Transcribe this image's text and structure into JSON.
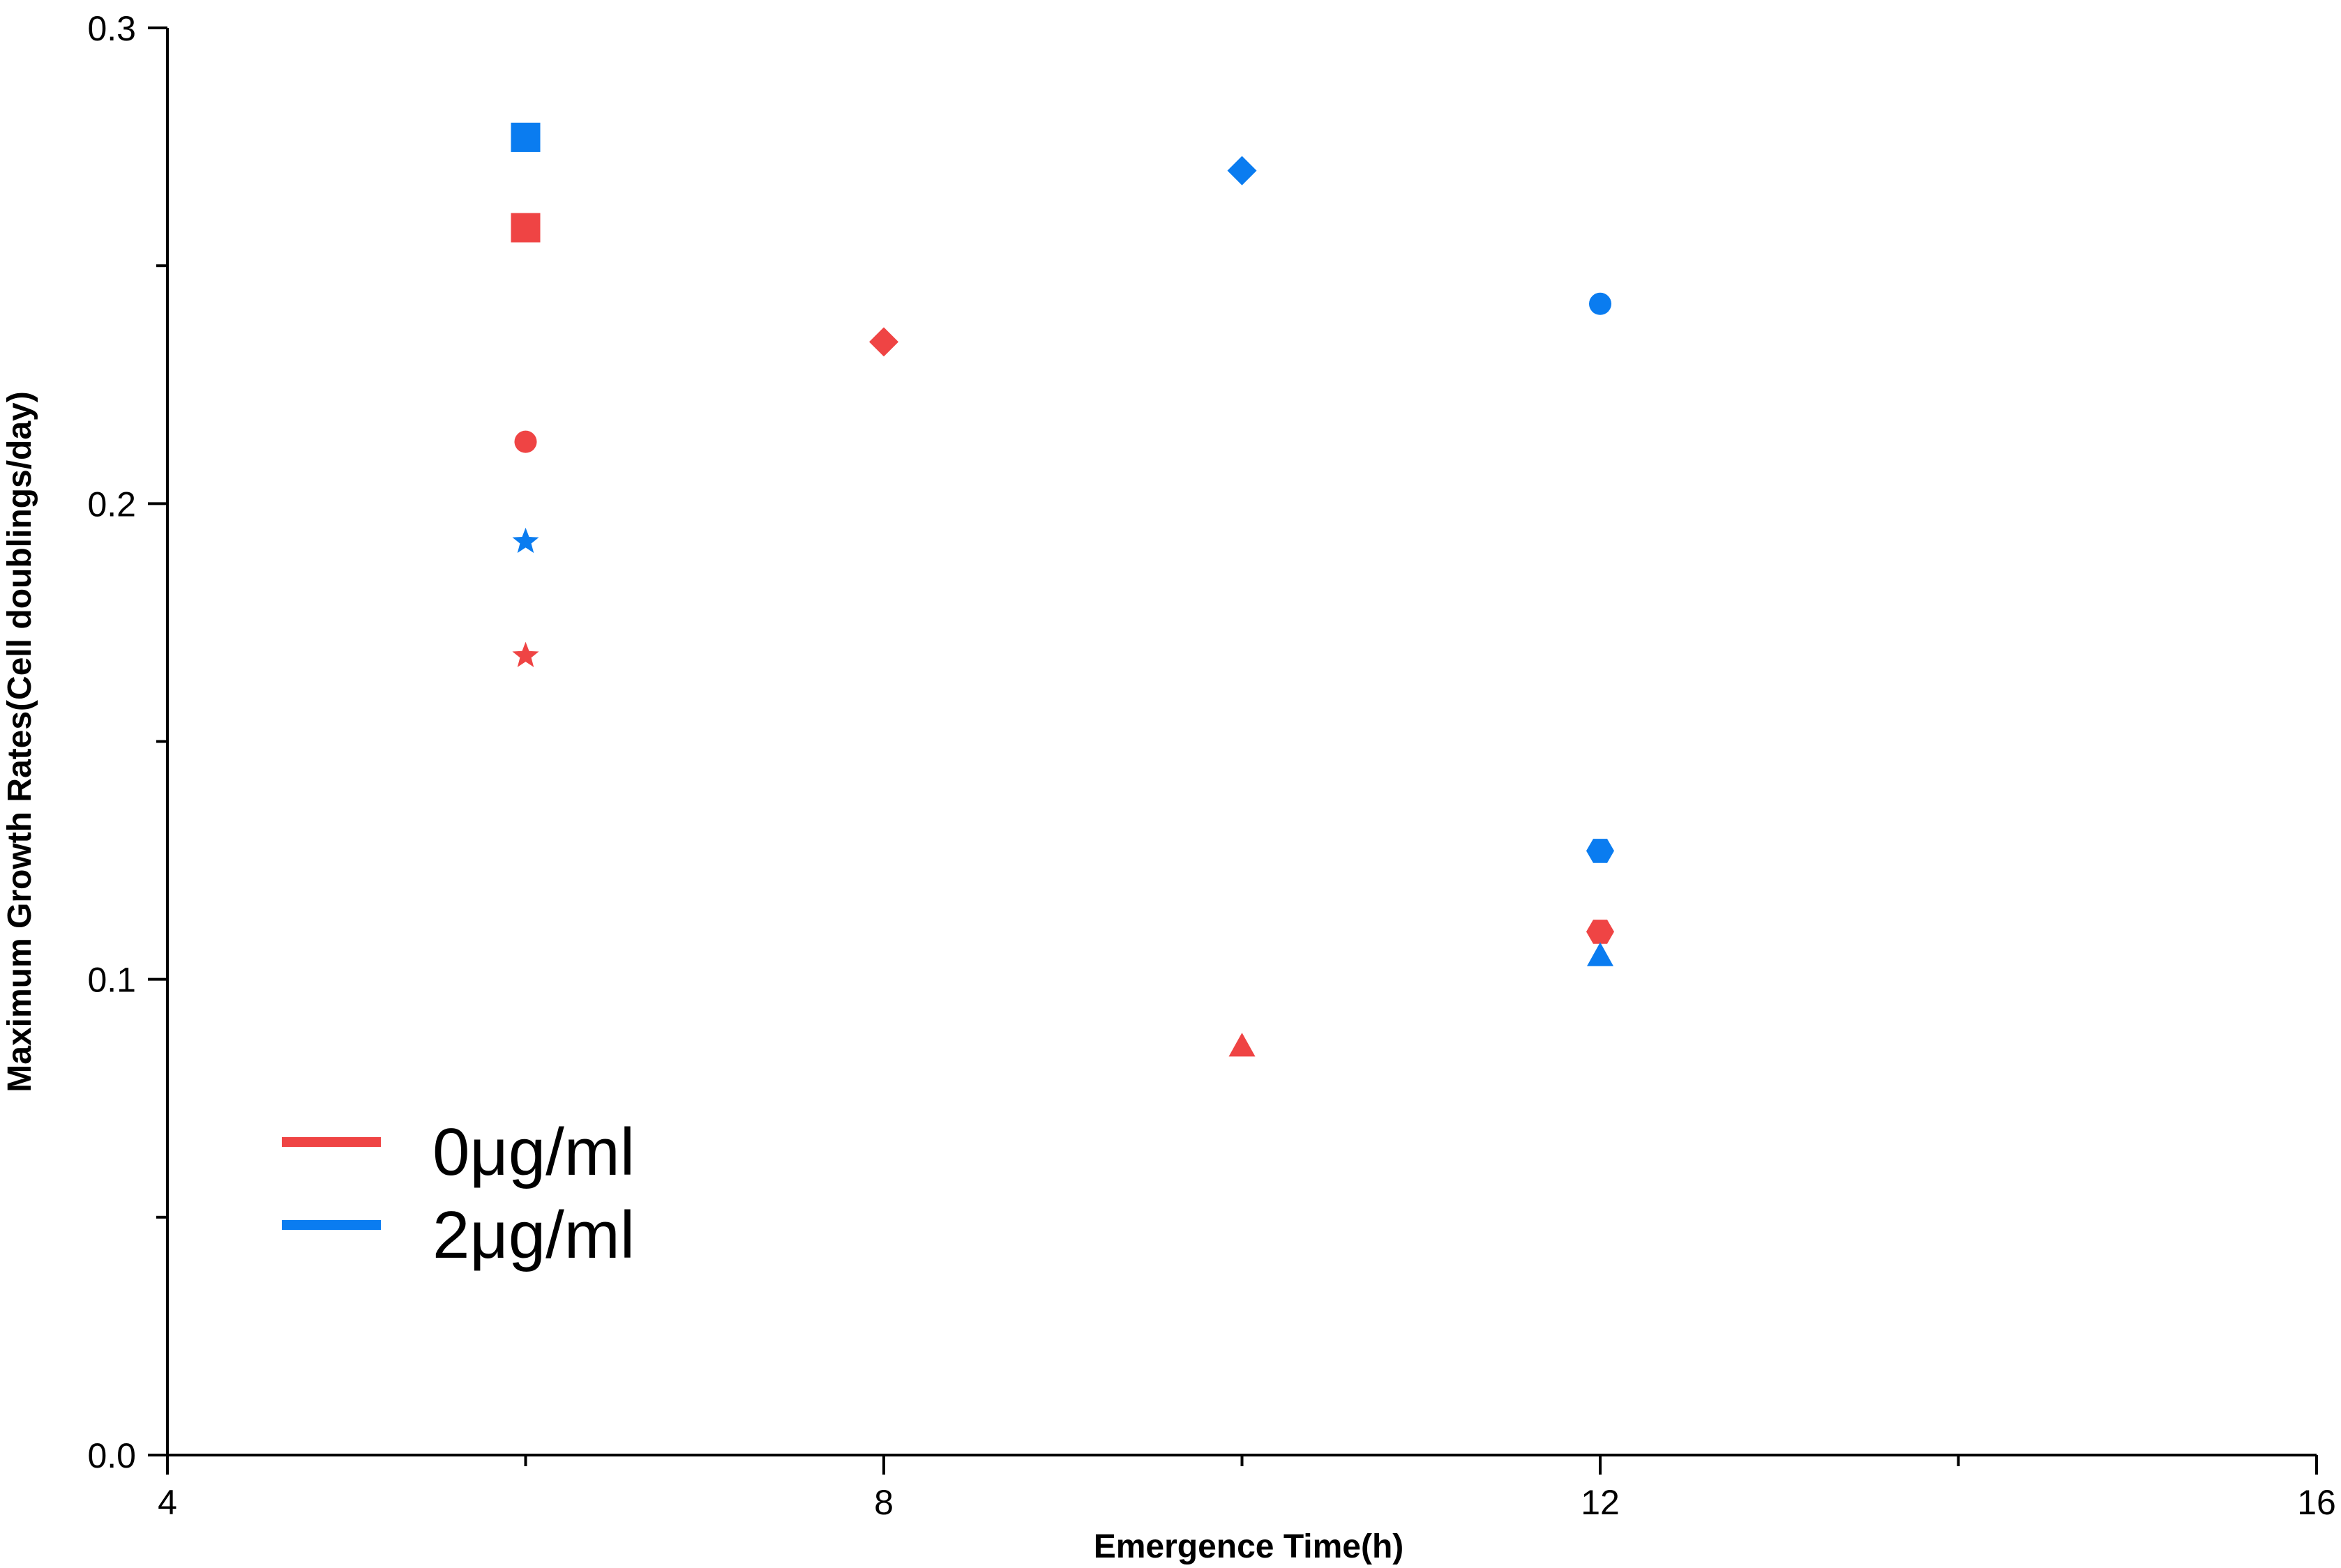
{
  "chart_data": {
    "type": "scatter",
    "title": "",
    "xlabel": "Emergence Time(h)",
    "ylabel": "Maximum Growth Rates(Cell doublings/day)",
    "xlim": [
      4,
      16
    ],
    "ylim": [
      0.0,
      0.3
    ],
    "x_ticks": [
      4,
      8,
      12,
      16
    ],
    "x_tick_labels": [
      "4",
      "8",
      "12",
      "16"
    ],
    "y_ticks": [
      0.0,
      0.1,
      0.2,
      0.3
    ],
    "y_tick_labels": [
      "0.0",
      "0.1",
      "0.2",
      "0.3"
    ],
    "grid": false,
    "legend_position": "bottom-left",
    "series": [
      {
        "name": "0μg/ml",
        "color": "#ef4444",
        "points": [
          {
            "x": 6,
            "y": 0.258,
            "marker": "square"
          },
          {
            "x": 6,
            "y": 0.213,
            "marker": "circle"
          },
          {
            "x": 6,
            "y": 0.168,
            "marker": "star"
          },
          {
            "x": 8,
            "y": 0.234,
            "marker": "diamond"
          },
          {
            "x": 10,
            "y": 0.086,
            "marker": "triangle"
          },
          {
            "x": 12,
            "y": 0.11,
            "marker": "hexagon"
          }
        ]
      },
      {
        "name": "2μg/ml",
        "color": "#0a7cf0",
        "points": [
          {
            "x": 6,
            "y": 0.277,
            "marker": "square"
          },
          {
            "x": 6,
            "y": 0.192,
            "marker": "star"
          },
          {
            "x": 10,
            "y": 0.27,
            "marker": "diamond"
          },
          {
            "x": 12,
            "y": 0.242,
            "marker": "circle"
          },
          {
            "x": 12,
            "y": 0.127,
            "marker": "hexagon"
          },
          {
            "x": 12,
            "y": 0.105,
            "marker": "triangle"
          }
        ]
      }
    ]
  }
}
